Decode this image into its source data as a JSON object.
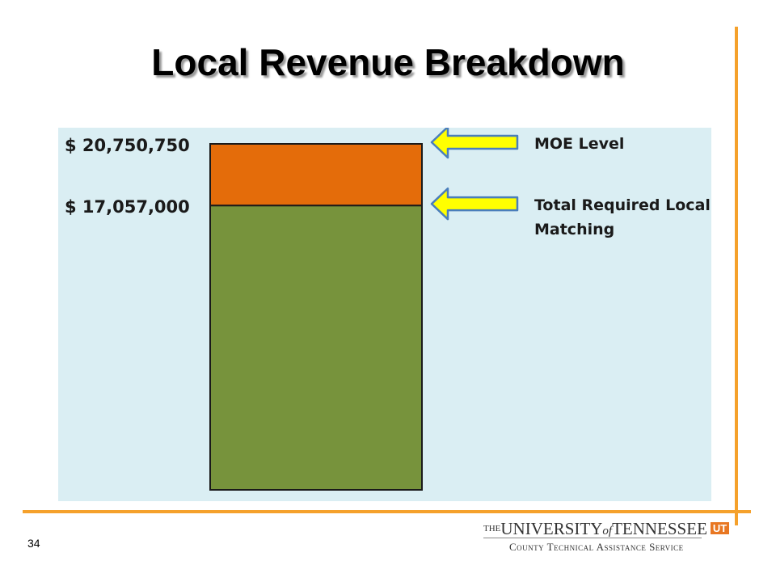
{
  "slide": {
    "title": "Local Revenue Breakdown",
    "page_number": "34"
  },
  "chart_data": {
    "type": "bar",
    "title": "",
    "stacked": true,
    "categories": [
      ""
    ],
    "series": [
      {
        "values": [
          17057000
        ],
        "color": "#77933C"
      },
      {
        "values": [
          3693750
        ],
        "color": "#E46C0A"
      }
    ],
    "value_labels": [
      {
        "value": 20750750,
        "text": "$ 20,750,750"
      },
      {
        "value": 17057000,
        "text": "$ 17,057,000"
      }
    ],
    "annotations": [
      {
        "text": [
          "MOE Level"
        ],
        "points_to": 20750750,
        "arrow_color": "#FFFF00"
      },
      {
        "text": [
          "Total Required Local",
          "Matching"
        ],
        "points_to": 17057000,
        "arrow_color": "#FFFF00"
      }
    ],
    "ylim": [
      0,
      20750750
    ],
    "background": "#DAEEF3",
    "grid": false,
    "legend": "none"
  },
  "colors": {
    "accent_lines": "#F5A12C"
  },
  "logo": {
    "line1_the": "THE",
    "line1_university": "UNIVERSITY",
    "line1_of": "of",
    "line1_tennessee": "TENNESSEE",
    "line1_mark": "UT",
    "line2": "County Technical Assistance Service"
  }
}
